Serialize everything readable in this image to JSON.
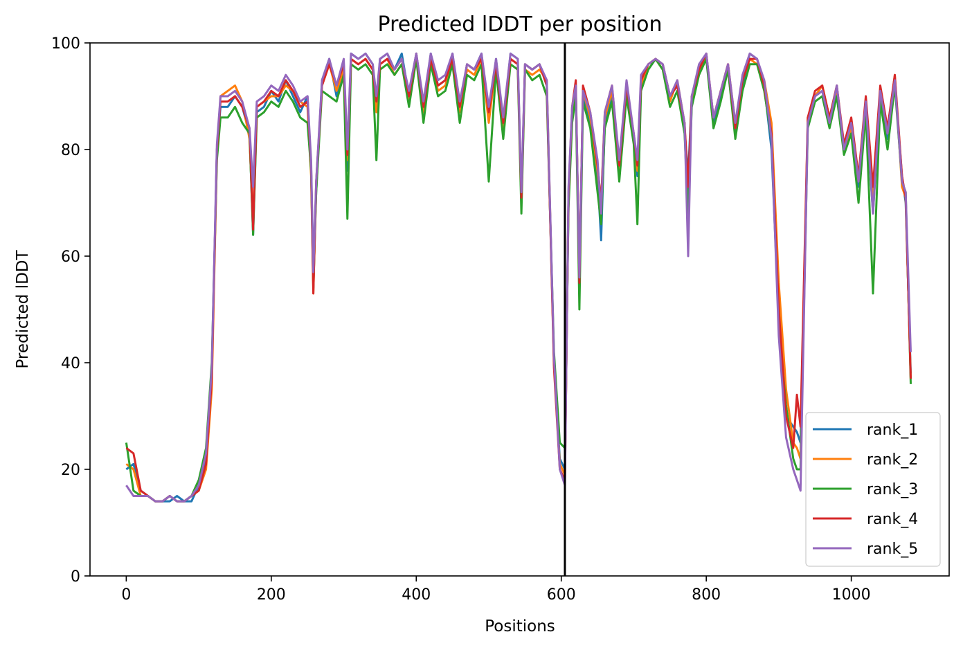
{
  "chart_data": {
    "type": "line",
    "title": "Predicted lDDT per position",
    "xlabel": "Positions",
    "ylabel": "Predicted lDDT",
    "xlim": [
      -50,
      1135
    ],
    "ylim": [
      0,
      100
    ],
    "xticks": [
      0,
      200,
      400,
      600,
      800,
      1000
    ],
    "yticks": [
      0,
      20,
      40,
      60,
      80,
      100
    ],
    "grid": false,
    "legend_position": "lower-right",
    "vline": {
      "x": 605,
      "color": "#000000"
    },
    "x": [
      0,
      10,
      20,
      30,
      40,
      50,
      60,
      70,
      80,
      90,
      100,
      110,
      118,
      125,
      130,
      140,
      150,
      160,
      170,
      175,
      180,
      190,
      200,
      210,
      220,
      230,
      240,
      250,
      255,
      258,
      262,
      270,
      280,
      290,
      300,
      305,
      310,
      320,
      330,
      340,
      345,
      350,
      360,
      370,
      380,
      390,
      400,
      410,
      420,
      430,
      440,
      450,
      460,
      470,
      480,
      490,
      500,
      510,
      520,
      530,
      540,
      545,
      550,
      560,
      570,
      580,
      590,
      598,
      605,
      610,
      615,
      620,
      625,
      630,
      640,
      650,
      655,
      660,
      670,
      680,
      690,
      700,
      705,
      710,
      720,
      730,
      740,
      750,
      760,
      770,
      775,
      780,
      790,
      800,
      810,
      820,
      830,
      840,
      850,
      860,
      870,
      880,
      890,
      900,
      910,
      920,
      925,
      930,
      940,
      950,
      960,
      970,
      980,
      990,
      1000,
      1010,
      1020,
      1030,
      1040,
      1050,
      1060,
      1070,
      1075,
      1082
    ],
    "series": [
      {
        "name": "rank_1",
        "color": "#1f77b4",
        "values": [
          20,
          21,
          16,
          15,
          14,
          14,
          14,
          15,
          14,
          14,
          17,
          22,
          38,
          80,
          88,
          88,
          90,
          88,
          83,
          64,
          87,
          88,
          91,
          89,
          93,
          90,
          87,
          90,
          76,
          58,
          72,
          93,
          97,
          90,
          96,
          76,
          98,
          97,
          98,
          96,
          88,
          97,
          98,
          95,
          98,
          90,
          98,
          88,
          98,
          92,
          93,
          98,
          88,
          96,
          95,
          98,
          86,
          97,
          85,
          98,
          97,
          70,
          96,
          95,
          96,
          92,
          40,
          22,
          20,
          70,
          86,
          92,
          55,
          90,
          85,
          75,
          63,
          85,
          90,
          75,
          92,
          82,
          75,
          93,
          95,
          97,
          96,
          90,
          92,
          84,
          75,
          90,
          95,
          98,
          85,
          90,
          95,
          83,
          92,
          98,
          97,
          92,
          80,
          48,
          30,
          28,
          27,
          25,
          85,
          90,
          91,
          85,
          92,
          80,
          85,
          73,
          88,
          68,
          90,
          82,
          93,
          75,
          70,
          38
        ]
      },
      {
        "name": "rank_2",
        "color": "#ff7f0e",
        "values": [
          21,
          20,
          15,
          15,
          14,
          14,
          15,
          14,
          14,
          15,
          16,
          20,
          35,
          79,
          90,
          91,
          92,
          89,
          82,
          66,
          88,
          89,
          90,
          90,
          92,
          91,
          89,
          88,
          75,
          53,
          73,
          92,
          96,
          91,
          95,
          78,
          97,
          96,
          97,
          95,
          87,
          96,
          97,
          94,
          96,
          89,
          97,
          87,
          97,
          91,
          92,
          97,
          87,
          95,
          94,
          97,
          85,
          96,
          84,
          97,
          96,
          70,
          95,
          94,
          95,
          93,
          40,
          21,
          19,
          71,
          87,
          91,
          56,
          91,
          86,
          76,
          70,
          86,
          91,
          76,
          91,
          82,
          76,
          92,
          96,
          97,
          95,
          89,
          93,
          85,
          70,
          89,
          95,
          97,
          86,
          91,
          96,
          85,
          93,
          97,
          96,
          93,
          85,
          55,
          35,
          25,
          24,
          22,
          86,
          90,
          92,
          86,
          91,
          80,
          84,
          74,
          89,
          70,
          91,
          83,
          94,
          73,
          71,
          37
        ]
      },
      {
        "name": "rank_3",
        "color": "#2ca02c",
        "values": [
          25,
          16,
          15,
          15,
          14,
          14,
          15,
          14,
          14,
          15,
          18,
          24,
          40,
          78,
          86,
          86,
          88,
          85,
          83,
          64,
          86,
          87,
          89,
          88,
          91,
          89,
          86,
          85,
          76,
          54,
          72,
          91,
          90,
          89,
          94,
          67,
          96,
          95,
          96,
          94,
          78,
          95,
          96,
          94,
          96,
          88,
          97,
          85,
          96,
          90,
          91,
          96,
          85,
          94,
          93,
          96,
          74,
          95,
          82,
          96,
          95,
          68,
          95,
          93,
          94,
          90,
          42,
          25,
          24,
          69,
          85,
          90,
          50,
          89,
          84,
          72,
          66,
          84,
          89,
          74,
          90,
          81,
          66,
          91,
          95,
          97,
          95,
          88,
          91,
          83,
          68,
          88,
          94,
          97,
          84,
          89,
          95,
          82,
          91,
          96,
          96,
          91,
          82,
          47,
          32,
          22,
          20,
          20,
          84,
          89,
          90,
          84,
          90,
          79,
          83,
          70,
          87,
          53,
          89,
          80,
          92,
          74,
          72,
          36
        ]
      },
      {
        "name": "rank_4",
        "color": "#d62728",
        "values": [
          24,
          23,
          16,
          15,
          14,
          14,
          15,
          14,
          14,
          15,
          16,
          21,
          37,
          80,
          89,
          89,
          90,
          88,
          84,
          65,
          88,
          89,
          91,
          90,
          93,
          91,
          88,
          89,
          77,
          53,
          74,
          92,
          96,
          92,
          96,
          79,
          97,
          96,
          97,
          95,
          89,
          96,
          97,
          95,
          97,
          90,
          98,
          88,
          97,
          92,
          93,
          97,
          88,
          96,
          95,
          97,
          87,
          96,
          85,
          97,
          96,
          71,
          96,
          95,
          96,
          92,
          39,
          20,
          18,
          72,
          88,
          93,
          55,
          92,
          87,
          77,
          70,
          87,
          92,
          77,
          92,
          83,
          77,
          93,
          96,
          97,
          96,
          90,
          92,
          85,
          73,
          90,
          95,
          98,
          86,
          91,
          96,
          84,
          93,
          97,
          97,
          92,
          83,
          50,
          30,
          24,
          34,
          28,
          86,
          91,
          92,
          86,
          92,
          81,
          86,
          75,
          90,
          73,
          92,
          84,
          94,
          75,
          71,
          37
        ]
      },
      {
        "name": "rank_5",
        "color": "#9467bd",
        "values": [
          17,
          15,
          15,
          15,
          14,
          14,
          15,
          14,
          14,
          15,
          17,
          23,
          39,
          81,
          90,
          90,
          91,
          89,
          84,
          73,
          89,
          90,
          92,
          91,
          94,
          92,
          89,
          90,
          78,
          57,
          74,
          93,
          97,
          92,
          97,
          80,
          98,
          97,
          98,
          96,
          90,
          97,
          98,
          95,
          97,
          91,
          98,
          89,
          98,
          93,
          94,
          98,
          89,
          96,
          95,
          98,
          88,
          97,
          86,
          98,
          97,
          72,
          96,
          95,
          96,
          93,
          41,
          20,
          17,
          73,
          88,
          92,
          56,
          91,
          87,
          78,
          68,
          87,
          92,
          78,
          93,
          83,
          78,
          94,
          96,
          97,
          96,
          90,
          93,
          85,
          60,
          90,
          96,
          98,
          86,
          91,
          96,
          85,
          94,
          98,
          97,
          93,
          82,
          45,
          26,
          20,
          18,
          16,
          85,
          90,
          91,
          85,
          92,
          80,
          85,
          74,
          89,
          68,
          91,
          83,
          93,
          74,
          72,
          42
        ]
      }
    ]
  }
}
